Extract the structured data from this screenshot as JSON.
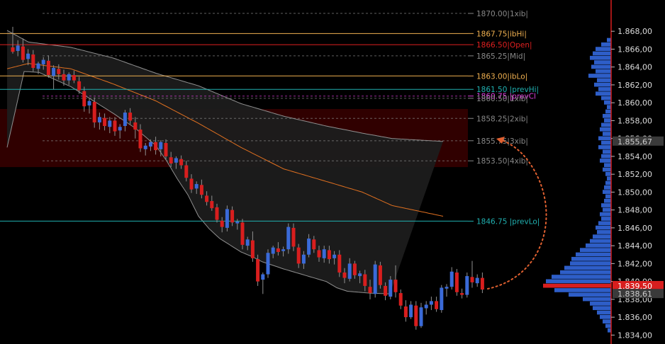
{
  "chart_data": {
    "type": "candlestick",
    "y_axis": {
      "ticks": [
        "1.834,00",
        "1.836,00",
        "1.838,00",
        "1.840,00",
        "1.842,00",
        "1.844,00",
        "1.846,00",
        "1.848,00",
        "1.850,00",
        "1.852,00",
        "1.854,00",
        "1.856,00",
        "1.858,00",
        "1.860,00",
        "1.862,00",
        "1.864,00",
        "1.866,00",
        "1.868,00"
      ],
      "tick_values": [
        1834,
        1836,
        1838,
        1840,
        1842,
        1844,
        1846,
        1848,
        1850,
        1852,
        1854,
        1856,
        1858,
        1860,
        1862,
        1864,
        1866,
        1868
      ],
      "range": [
        1833.0,
        1871.5
      ],
      "position": "right",
      "price_badges": [
        {
          "label": "1.855,67",
          "value": 1855.67,
          "color": "#3a3a3a",
          "text_color": "#cccccc"
        },
        {
          "label": "1.839,50",
          "value": 1839.5,
          "color": "#d81e1e",
          "text_color": "#ffffff"
        },
        {
          "label": "1.838,61",
          "value": 1838.61,
          "color": "#3a3a3a",
          "text_color": "#cccccc"
        }
      ]
    },
    "levels": [
      {
        "label": "1870.00|1xib|",
        "value": 1870.0,
        "color": "#888888",
        "style": "dashed"
      },
      {
        "label": "1867.75|ibHi|",
        "value": 1867.75,
        "color": "#f0b050",
        "style": "solid"
      },
      {
        "label": "1866.50|Open|",
        "value": 1866.5,
        "color": "#e02020",
        "style": "solid"
      },
      {
        "label": "1865.25|Mid|",
        "value": 1865.25,
        "color": "#888888",
        "style": "dashed"
      },
      {
        "label": "1863.00|ibLo|",
        "value": 1863.0,
        "color": "#f0b050",
        "style": "solid"
      },
      {
        "label": "1861.50 |prevHi|",
        "value": 1861.5,
        "color": "#20b0b0",
        "style": "solid"
      },
      {
        "label": "1860.75 |prevCl",
        "value": 1860.75,
        "color": "#e040e0",
        "style": "dashed"
      },
      {
        "label": "1860.50|1xib|",
        "value": 1860.5,
        "color": "#888888",
        "style": "dashed"
      },
      {
        "label": "1858.25|2xib|",
        "value": 1858.25,
        "color": "#888888",
        "style": "dashed"
      },
      {
        "label": "1855.75|3xib|",
        "value": 1855.75,
        "color": "#888888",
        "style": "dashed"
      },
      {
        "label": "1853.50|4xib|",
        "value": 1853.5,
        "color": "#888888",
        "style": "dashed"
      },
      {
        "label": "1846.75 |prevLo|",
        "value": 1846.75,
        "color": "#20b0b0",
        "style": "solid"
      }
    ],
    "shaded_zone": {
      "from": 1852.8,
      "to": 1859.3,
      "color": "#300000"
    },
    "candles": [
      [
        1866.2,
        1868.5,
        1865.5,
        1865.7
      ],
      [
        1865.8,
        1867.0,
        1865.2,
        1866.4
      ],
      [
        1866.3,
        1867.2,
        1864.5,
        1864.8
      ],
      [
        1864.9,
        1866.0,
        1864.2,
        1865.5
      ],
      [
        1865.4,
        1865.9,
        1863.5,
        1863.9
      ],
      [
        1863.8,
        1864.6,
        1863.2,
        1864.4
      ],
      [
        1864.3,
        1865.1,
        1863.7,
        1864.8
      ],
      [
        1864.7,
        1865.3,
        1862.8,
        1863.1
      ],
      [
        1863.0,
        1864.2,
        1861.5,
        1863.9
      ],
      [
        1863.8,
        1864.3,
        1862.6,
        1863.2
      ],
      [
        1863.2,
        1863.7,
        1861.9,
        1862.5
      ],
      [
        1862.5,
        1863.4,
        1862.0,
        1863.2
      ],
      [
        1863.1,
        1863.6,
        1862.2,
        1862.5
      ],
      [
        1862.4,
        1862.9,
        1861.0,
        1861.4
      ],
      [
        1861.3,
        1861.8,
        1859.0,
        1859.6
      ],
      [
        1859.7,
        1860.5,
        1858.8,
        1860.2
      ],
      [
        1860.1,
        1860.6,
        1857.2,
        1857.8
      ],
      [
        1857.8,
        1858.9,
        1857.0,
        1858.4
      ],
      [
        1858.3,
        1858.8,
        1856.9,
        1857.4
      ],
      [
        1857.3,
        1858.4,
        1856.6,
        1858.0
      ],
      [
        1858.0,
        1858.4,
        1856.3,
        1856.8
      ],
      [
        1856.9,
        1857.6,
        1856.0,
        1857.3
      ],
      [
        1857.4,
        1859.2,
        1856.8,
        1858.9
      ],
      [
        1858.9,
        1859.4,
        1857.6,
        1858.0
      ],
      [
        1857.8,
        1858.4,
        1856.0,
        1857.0
      ],
      [
        1857.0,
        1857.6,
        1854.5,
        1854.9
      ],
      [
        1854.8,
        1855.5,
        1854.1,
        1855.2
      ],
      [
        1855.1,
        1855.9,
        1854.6,
        1855.6
      ],
      [
        1855.6,
        1856.2,
        1854.2,
        1854.7
      ],
      [
        1854.8,
        1855.8,
        1854.0,
        1855.6
      ],
      [
        1855.5,
        1855.9,
        1853.6,
        1854.0
      ],
      [
        1853.9,
        1854.5,
        1852.8,
        1853.2
      ],
      [
        1853.3,
        1854.0,
        1852.6,
        1853.8
      ],
      [
        1853.7,
        1854.1,
        1852.6,
        1853.0
      ],
      [
        1853.0,
        1853.5,
        1851.2,
        1851.6
      ],
      [
        1851.5,
        1852.0,
        1849.9,
        1850.3
      ],
      [
        1850.4,
        1851.2,
        1849.8,
        1850.9
      ],
      [
        1850.8,
        1851.4,
        1849.3,
        1849.7
      ],
      [
        1849.6,
        1850.1,
        1848.5,
        1848.9
      ],
      [
        1849.0,
        1849.6,
        1847.9,
        1848.2
      ],
      [
        1848.3,
        1848.7,
        1846.6,
        1846.9
      ],
      [
        1846.8,
        1847.2,
        1845.5,
        1846.1
      ],
      [
        1846.0,
        1848.5,
        1845.6,
        1848.1
      ],
      [
        1848.0,
        1848.4,
        1846.2,
        1846.6
      ],
      [
        1846.5,
        1847.0,
        1845.8,
        1846.7
      ],
      [
        1846.6,
        1847.0,
        1843.6,
        1844.1
      ],
      [
        1844.0,
        1845.0,
        1843.5,
        1844.7
      ],
      [
        1844.6,
        1845.6,
        1842.2,
        1842.6
      ],
      [
        1842.5,
        1843.0,
        1839.5,
        1840.0
      ],
      [
        1840.2,
        1841.0,
        1838.6,
        1840.8
      ],
      [
        1840.8,
        1843.6,
        1840.4,
        1843.2
      ],
      [
        1843.1,
        1844.0,
        1842.6,
        1843.8
      ],
      [
        1843.7,
        1844.4,
        1842.9,
        1843.3
      ],
      [
        1843.4,
        1843.9,
        1842.8,
        1843.6
      ],
      [
        1843.6,
        1846.5,
        1843.1,
        1846.1
      ],
      [
        1846.0,
        1846.5,
        1843.4,
        1843.9
      ],
      [
        1843.8,
        1844.2,
        1841.5,
        1842.0
      ],
      [
        1842.0,
        1843.4,
        1841.4,
        1843.0
      ],
      [
        1843.0,
        1845.3,
        1842.7,
        1844.8
      ],
      [
        1844.7,
        1845.1,
        1843.2,
        1843.6
      ],
      [
        1843.5,
        1844.0,
        1842.2,
        1842.7
      ],
      [
        1842.6,
        1844.0,
        1842.1,
        1843.6
      ],
      [
        1843.5,
        1844.0,
        1842.0,
        1842.5
      ],
      [
        1842.6,
        1843.4,
        1841.9,
        1843.0
      ],
      [
        1843.0,
        1843.5,
        1840.5,
        1841.0
      ],
      [
        1841.0,
        1841.5,
        1839.8,
        1840.4
      ],
      [
        1840.3,
        1842.6,
        1840.0,
        1842.0
      ],
      [
        1842.0,
        1842.3,
        1840.3,
        1840.7
      ],
      [
        1840.6,
        1841.2,
        1839.8,
        1840.9
      ],
      [
        1840.8,
        1841.3,
        1838.9,
        1839.5
      ],
      [
        1839.4,
        1840.2,
        1838.0,
        1838.7
      ],
      [
        1838.6,
        1842.3,
        1838.2,
        1841.9
      ],
      [
        1841.8,
        1842.2,
        1839.2,
        1839.6
      ],
      [
        1839.5,
        1839.9,
        1837.9,
        1838.4
      ],
      [
        1838.3,
        1840.6,
        1838.0,
        1840.2
      ],
      [
        1840.2,
        1841.8,
        1838.2,
        1838.8
      ],
      [
        1838.7,
        1839.1,
        1836.9,
        1837.3
      ],
      [
        1837.2,
        1837.9,
        1835.5,
        1836.0
      ],
      [
        1836.0,
        1837.8,
        1835.8,
        1837.4
      ],
      [
        1837.3,
        1837.8,
        1834.6,
        1835.0
      ],
      [
        1835.0,
        1837.6,
        1834.8,
        1837.1
      ],
      [
        1837.0,
        1837.8,
        1836.3,
        1837.4
      ],
      [
        1837.4,
        1838.3,
        1836.8,
        1837.8
      ],
      [
        1837.8,
        1838.3,
        1836.6,
        1836.9
      ],
      [
        1836.8,
        1839.6,
        1836.5,
        1839.3
      ],
      [
        1839.2,
        1839.7,
        1838.3,
        1839.4
      ],
      [
        1839.4,
        1841.6,
        1839.1,
        1841.1
      ],
      [
        1841.0,
        1841.4,
        1838.4,
        1838.8
      ],
      [
        1838.7,
        1839.2,
        1838.1,
        1838.5
      ],
      [
        1838.5,
        1841.0,
        1838.2,
        1840.6
      ],
      [
        1840.5,
        1842.3,
        1839.3,
        1839.9
      ],
      [
        1839.8,
        1840.8,
        1839.4,
        1840.4
      ],
      [
        1840.4,
        1841.0,
        1838.7,
        1839.1
      ]
    ],
    "bands": {
      "upper": [
        [
          0,
          1868.1
        ],
        [
          10,
          1866.8
        ],
        [
          30,
          1866.2
        ],
        [
          50,
          1865.0
        ],
        [
          70,
          1863.3
        ],
        [
          90,
          1861.9
        ],
        [
          110,
          1859.9
        ],
        [
          130,
          1858.5
        ],
        [
          150,
          1857.4
        ],
        [
          167,
          1856.6
        ],
        [
          181,
          1856.0
        ],
        [
          205,
          1855.67
        ]
      ],
      "middle": [
        [
          0,
          1863.8
        ],
        [
          10,
          1864.4
        ],
        [
          30,
          1863.8
        ],
        [
          50,
          1862.1
        ],
        [
          70,
          1860.2
        ],
        [
          90,
          1857.7
        ],
        [
          110,
          1855.0
        ],
        [
          130,
          1852.6
        ],
        [
          150,
          1851.2
        ],
        [
          167,
          1850.0
        ],
        [
          181,
          1848.5
        ],
        [
          205,
          1847.3
        ]
      ],
      "lower": [
        [
          0,
          1855.0
        ],
        [
          8,
          1863.5
        ],
        [
          15,
          1863.4
        ],
        [
          30,
          1861.8
        ],
        [
          50,
          1858.8
        ],
        [
          60,
          1857.2
        ],
        [
          70,
          1855.2
        ],
        [
          75,
          1853.5
        ],
        [
          80,
          1851.5
        ],
        [
          85,
          1849.7
        ],
        [
          90,
          1847.3
        ],
        [
          95,
          1845.9
        ],
        [
          100,
          1844.8
        ],
        [
          110,
          1843.3
        ],
        [
          115,
          1842.8
        ],
        [
          120,
          1842.2
        ],
        [
          130,
          1841.4
        ],
        [
          140,
          1840.7
        ],
        [
          150,
          1840.0
        ],
        [
          155,
          1839.3
        ],
        [
          160,
          1838.9
        ],
        [
          170,
          1838.7
        ],
        [
          180,
          1838.61
        ]
      ]
    },
    "volume_profile": [
      [
        1867.0,
        6
      ],
      [
        1866.5,
        14
      ],
      [
        1866.0,
        22
      ],
      [
        1865.5,
        26
      ],
      [
        1865.0,
        30
      ],
      [
        1864.5,
        24
      ],
      [
        1864.0,
        28
      ],
      [
        1863.5,
        22
      ],
      [
        1863.0,
        32
      ],
      [
        1862.5,
        20
      ],
      [
        1862.0,
        24
      ],
      [
        1861.5,
        18
      ],
      [
        1861.0,
        22
      ],
      [
        1860.5,
        14
      ],
      [
        1860.0,
        10
      ],
      [
        1859.5,
        6
      ],
      [
        1859.0,
        8
      ],
      [
        1858.5,
        12
      ],
      [
        1858.0,
        10
      ],
      [
        1857.5,
        14
      ],
      [
        1857.0,
        16
      ],
      [
        1856.5,
        12
      ],
      [
        1856.0,
        18
      ],
      [
        1855.5,
        14
      ],
      [
        1855.0,
        18
      ],
      [
        1854.5,
        12
      ],
      [
        1854.0,
        14
      ],
      [
        1853.5,
        16
      ],
      [
        1853.0,
        10
      ],
      [
        1852.5,
        12
      ],
      [
        1852.0,
        8
      ],
      [
        1851.5,
        6
      ],
      [
        1851.0,
        8
      ],
      [
        1850.5,
        10
      ],
      [
        1850.0,
        12
      ],
      [
        1849.5,
        8
      ],
      [
        1849.0,
        10
      ],
      [
        1848.5,
        14
      ],
      [
        1848.0,
        12
      ],
      [
        1847.5,
        16
      ],
      [
        1847.0,
        14
      ],
      [
        1846.5,
        18
      ],
      [
        1846.0,
        22
      ],
      [
        1845.5,
        20
      ],
      [
        1845.0,
        26
      ],
      [
        1844.5,
        30
      ],
      [
        1844.0,
        36
      ],
      [
        1843.5,
        44
      ],
      [
        1843.0,
        50
      ],
      [
        1842.5,
        56
      ],
      [
        1842.0,
        58
      ],
      [
        1841.5,
        66
      ],
      [
        1841.0,
        72
      ],
      [
        1840.5,
        84
      ],
      [
        1840.0,
        92
      ],
      [
        1839.5,
        96
      ],
      [
        1839.0,
        80
      ],
      [
        1838.5,
        60
      ],
      [
        1838.0,
        40
      ],
      [
        1837.5,
        30
      ],
      [
        1837.0,
        26
      ],
      [
        1836.5,
        20
      ],
      [
        1836.0,
        16
      ],
      [
        1835.5,
        12
      ],
      [
        1835.0,
        8
      ],
      [
        1834.5,
        5
      ]
    ],
    "colors": {
      "up": "#3a6ad8",
      "down": "#d81e1e",
      "wick": "#909090",
      "band_fill": "#1c1c1c",
      "band_line": "#909090",
      "middle_line": "#e07020",
      "profile": "#2e5ec8",
      "profile_poc": "#d81e1e",
      "arrow": "#e06030"
    }
  }
}
